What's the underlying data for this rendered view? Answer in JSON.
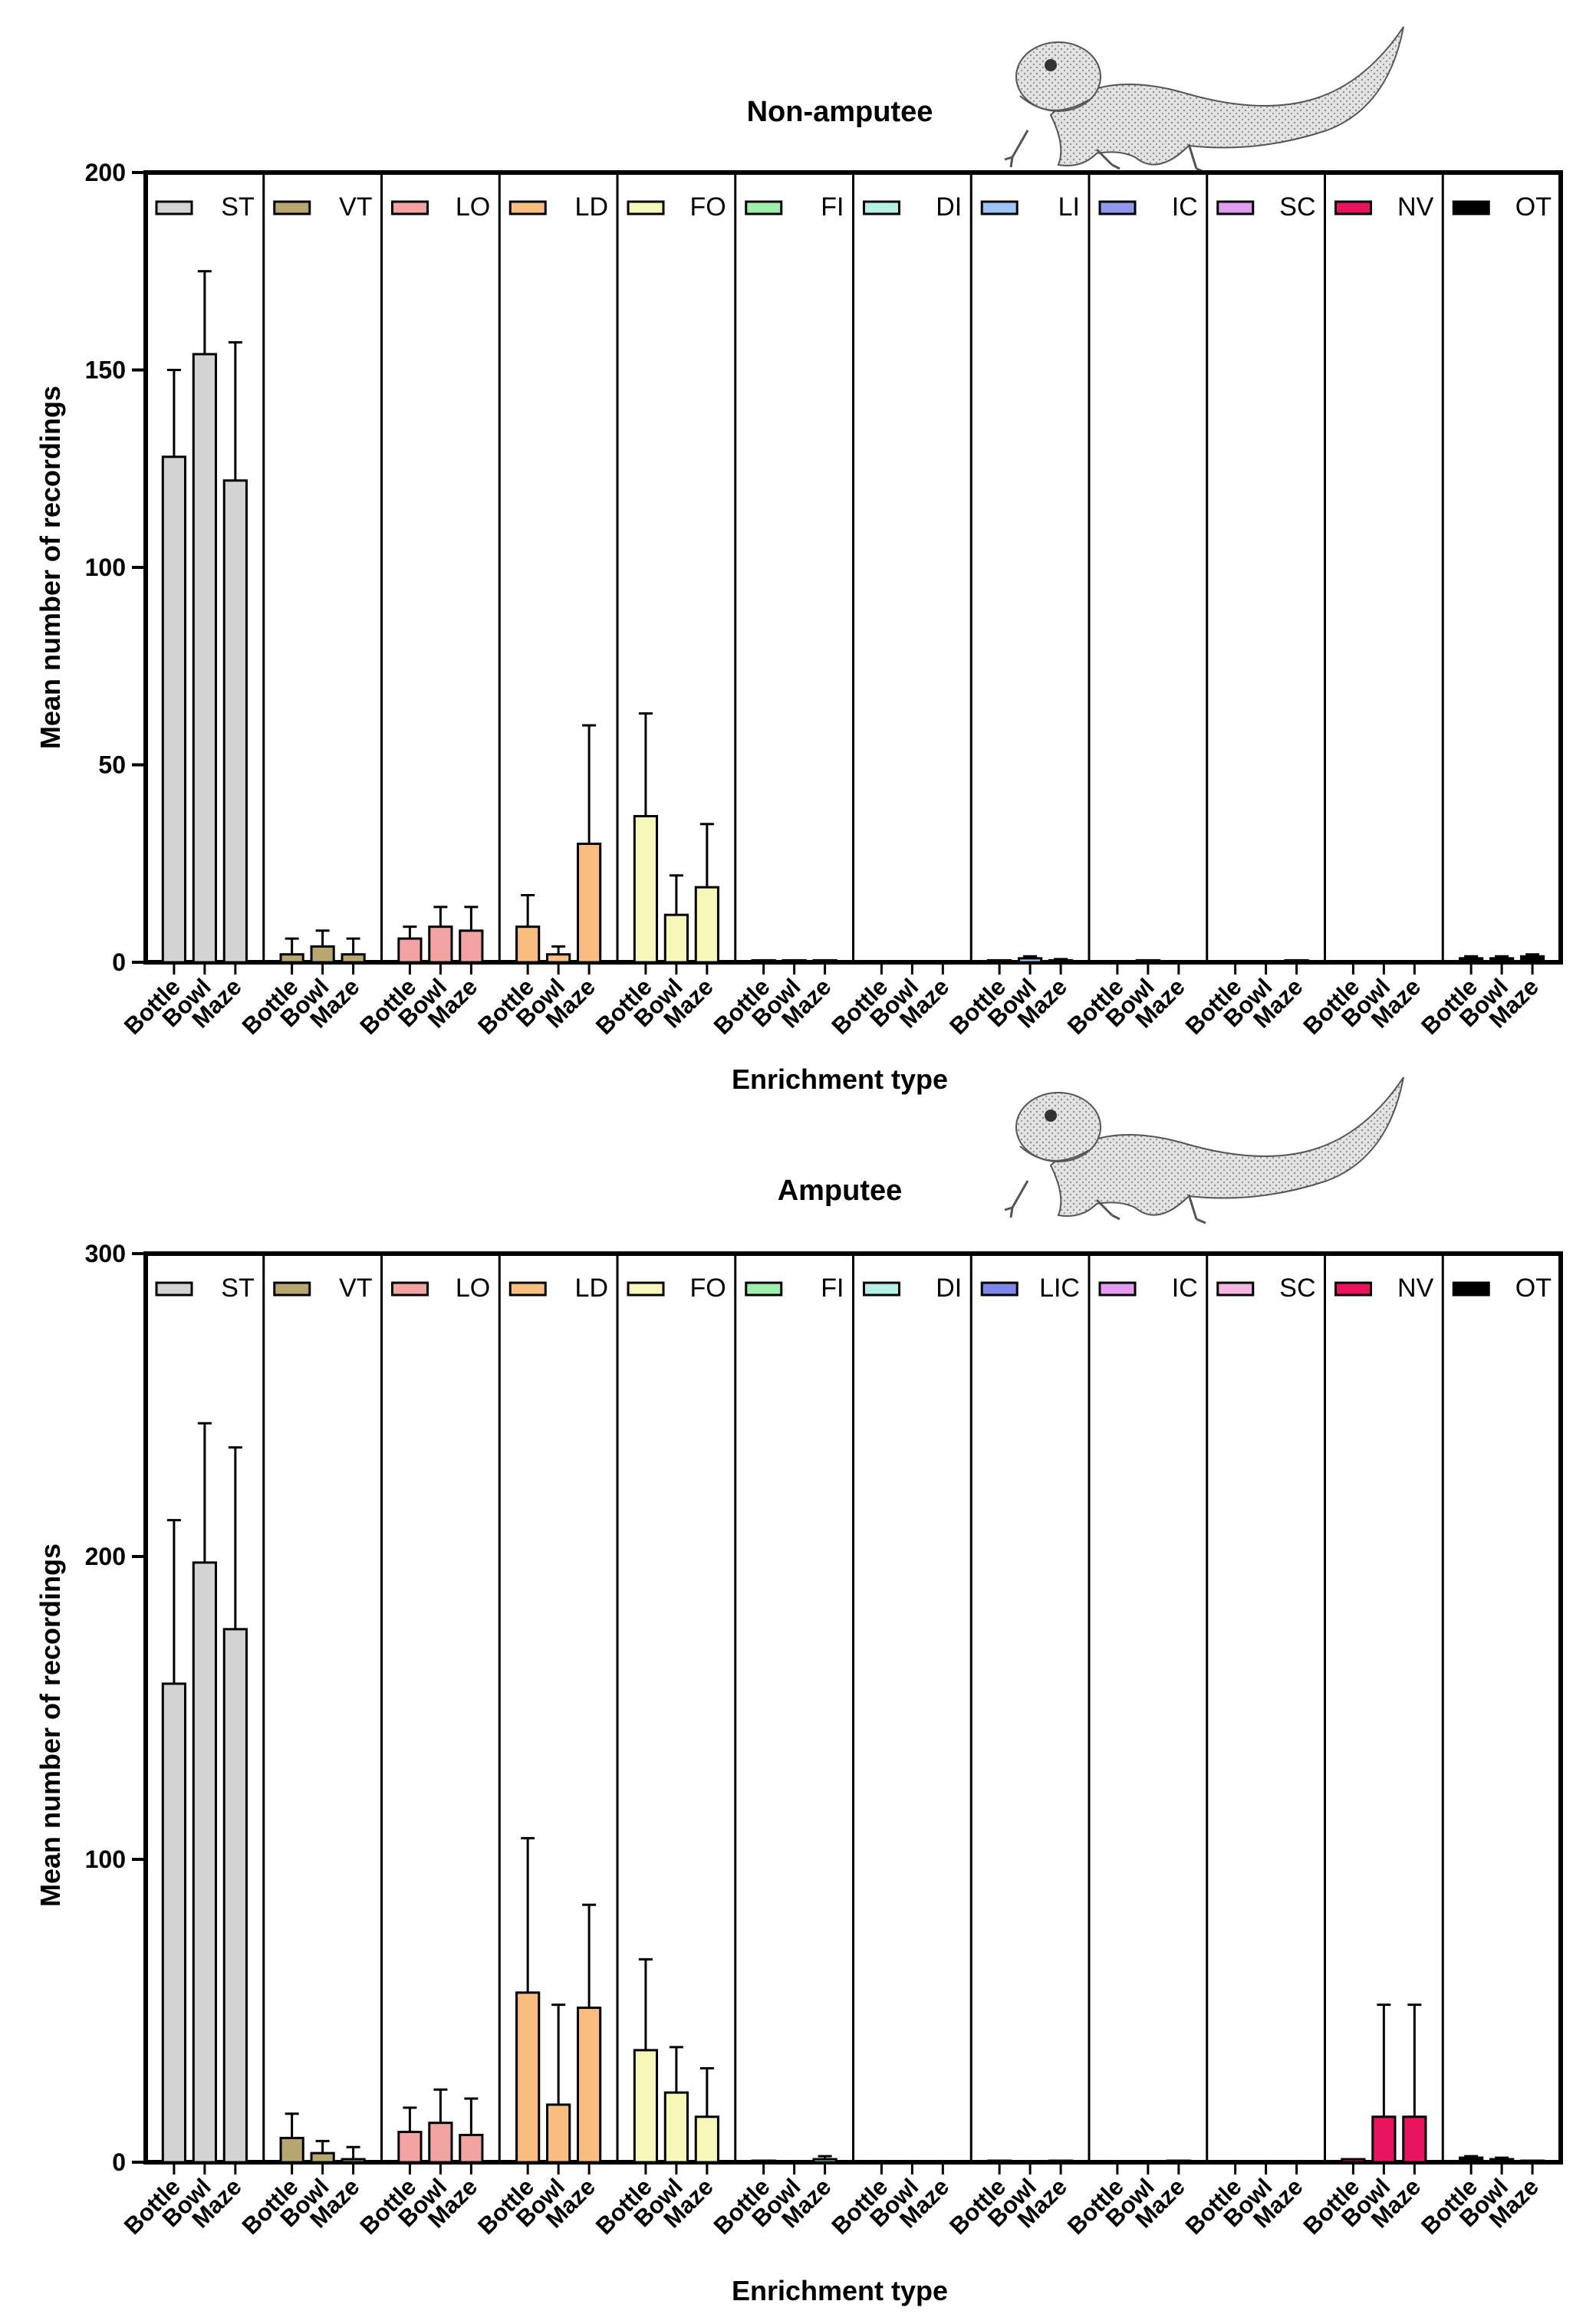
{
  "chart_data": [
    {
      "type": "bar",
      "title": "Non-amputee",
      "xlabel": "Enrichment type",
      "ylabel": "Mean number of recordings",
      "ylim": [
        0,
        200
      ],
      "yticks": [
        0,
        50,
        100,
        150,
        200
      ],
      "grid": false,
      "legend": "top, one entry per group",
      "categories": [
        "Bottle",
        "Bowl",
        "Maze"
      ],
      "groups": [
        {
          "name": "ST",
          "color": "#d3d3d3",
          "values": [
            128,
            154,
            122
          ],
          "errors": [
            22,
            21,
            35
          ]
        },
        {
          "name": "VT",
          "color": "#b8a86f",
          "values": [
            2,
            4,
            2
          ],
          "errors": [
            4,
            4,
            4
          ]
        },
        {
          "name": "LO",
          "color": "#f4a3a3",
          "values": [
            6,
            9,
            8
          ],
          "errors": [
            3,
            5,
            6
          ]
        },
        {
          "name": "LD",
          "color": "#f8bd7f",
          "values": [
            9,
            2,
            30
          ],
          "errors": [
            8,
            2,
            30
          ]
        },
        {
          "name": "FO",
          "color": "#f6f7b8",
          "values": [
            37,
            12,
            19
          ],
          "errors": [
            26,
            10,
            16
          ]
        },
        {
          "name": "FI",
          "color": "#9eefae",
          "values": [
            0.5,
            0.5,
            0.5
          ],
          "errors": [
            0,
            0,
            0
          ]
        },
        {
          "name": "DI",
          "color": "#b6f1e8",
          "values": [
            0,
            0,
            0
          ],
          "errors": [
            0,
            0,
            0
          ]
        },
        {
          "name": "LI",
          "color": "#9ec5f3",
          "values": [
            0.5,
            1,
            0.5
          ],
          "errors": [
            0,
            0.5,
            0.3
          ]
        },
        {
          "name": "IC",
          "color": "#8f98ec",
          "values": [
            0,
            0.5,
            0
          ],
          "errors": [
            0,
            0,
            0
          ]
        },
        {
          "name": "SC",
          "color": "#de9ef0",
          "values": [
            0,
            0,
            0.5
          ],
          "errors": [
            0,
            0,
            0
          ]
        },
        {
          "name": "NV",
          "color": "#e8145f",
          "values": [
            0,
            0,
            0
          ],
          "errors": [
            0,
            0,
            0
          ]
        },
        {
          "name": "OT",
          "color": "#000000",
          "values": [
            1,
            1,
            1.5
          ],
          "errors": [
            0.5,
            0.5,
            0.5
          ]
        }
      ]
    },
    {
      "type": "bar",
      "title": "Amputee",
      "xlabel": "Enrichment type",
      "ylabel": "Mean number of recordings",
      "ylim": [
        0,
        300
      ],
      "yticks": [
        0,
        100,
        200,
        300
      ],
      "grid": false,
      "legend": "top, one entry per group",
      "categories": [
        "Bottle",
        "Bowl",
        "Maze"
      ],
      "groups": [
        {
          "name": "ST",
          "color": "#d3d3d3",
          "values": [
            158,
            198,
            176
          ],
          "errors": [
            54,
            46,
            60
          ]
        },
        {
          "name": "VT",
          "color": "#b8a86f",
          "values": [
            8,
            3,
            1
          ],
          "errors": [
            8,
            4,
            4
          ]
        },
        {
          "name": "LO",
          "color": "#f4a3a3",
          "values": [
            10,
            13,
            9
          ],
          "errors": [
            8,
            11,
            12
          ]
        },
        {
          "name": "LD",
          "color": "#f8bd7f",
          "values": [
            56,
            19,
            51
          ],
          "errors": [
            51,
            33,
            34
          ]
        },
        {
          "name": "FO",
          "color": "#f6f7b8",
          "values": [
            37,
            23,
            15
          ],
          "errors": [
            30,
            15,
            16
          ]
        },
        {
          "name": "FI",
          "color": "#9eefae",
          "values": [
            0.5,
            0.3,
            1
          ],
          "errors": [
            0,
            0,
            1
          ]
        },
        {
          "name": "DI",
          "color": "#b6f1e8",
          "values": [
            0,
            0,
            0.3
          ],
          "errors": [
            0,
            0,
            0
          ]
        },
        {
          "name": "LIC",
          "color": "#7e86e8",
          "values": [
            0.5,
            0.3,
            0.5
          ],
          "errors": [
            0,
            0,
            0
          ]
        },
        {
          "name": "IC",
          "color": "#e39cf1",
          "values": [
            0,
            0,
            0.5
          ],
          "errors": [
            0,
            0,
            0
          ]
        },
        {
          "name": "SC",
          "color": "#f5b7e0",
          "values": [
            0.3,
            0.3,
            0
          ],
          "errors": [
            0,
            0,
            0
          ]
        },
        {
          "name": "NV",
          "color": "#e8145f",
          "values": [
            1,
            15,
            15
          ],
          "errors": [
            0,
            37,
            37
          ]
        },
        {
          "name": "OT",
          "color": "#000000",
          "values": [
            1.5,
            1,
            0.5
          ],
          "errors": [
            0.5,
            0.5,
            0
          ]
        }
      ]
    }
  ],
  "illustration": {
    "description_icon": "bearded-dragon-lizard-icon"
  }
}
